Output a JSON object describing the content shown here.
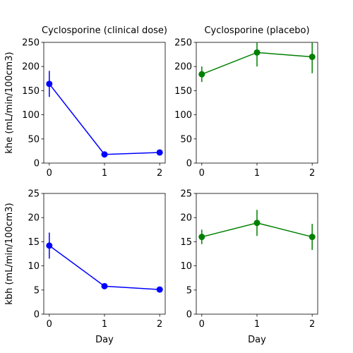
{
  "chart_data": [
    {
      "type": "line",
      "title": "Cyclosporine (clinical dose)",
      "xlabel": "",
      "ylabel": "khe (mL/min/100cm3)",
      "xlim": [
        -0.1,
        2.1
      ],
      "ylim": [
        0,
        250
      ],
      "xticks": [
        0,
        1,
        2
      ],
      "yticks": [
        0,
        50,
        100,
        150,
        200,
        250
      ],
      "color": "#0000ff",
      "grid": false,
      "x": [
        0,
        1,
        2
      ],
      "y": [
        164,
        18,
        22
      ],
      "err": [
        27,
        3,
        3
      ]
    },
    {
      "type": "line",
      "title": "Cyclosporine (placebo)",
      "xlabel": "",
      "ylabel": "",
      "xlim": [
        -0.1,
        2.1
      ],
      "ylim": [
        0,
        250
      ],
      "xticks": [
        0,
        1,
        2
      ],
      "yticks": [
        0,
        50,
        100,
        150,
        200,
        250
      ],
      "color": "#008000",
      "grid": false,
      "x": [
        0,
        1,
        2
      ],
      "y": [
        184,
        229,
        220
      ],
      "err": [
        16,
        29,
        34
      ]
    },
    {
      "type": "line",
      "title": "",
      "xlabel": "Day",
      "ylabel": "kbh (mL/min/100cm3)",
      "xlim": [
        -0.1,
        2.1
      ],
      "ylim": [
        0,
        25
      ],
      "xticks": [
        0,
        1,
        2
      ],
      "yticks": [
        0,
        5,
        10,
        15,
        20,
        25
      ],
      "color": "#0000ff",
      "grid": false,
      "x": [
        0,
        1,
        2
      ],
      "y": [
        14.2,
        5.8,
        5.1
      ],
      "err": [
        2.7,
        0.4,
        0.4
      ]
    },
    {
      "type": "line",
      "title": "",
      "xlabel": "Day",
      "ylabel": "",
      "xlim": [
        -0.1,
        2.1
      ],
      "ylim": [
        0,
        25
      ],
      "xticks": [
        0,
        1,
        2
      ],
      "yticks": [
        0,
        5,
        10,
        15,
        20,
        25
      ],
      "color": "#008000",
      "grid": false,
      "x": [
        0,
        1,
        2
      ],
      "y": [
        16.0,
        18.9,
        16.0
      ],
      "err": [
        1.5,
        2.7,
        2.7
      ]
    }
  ]
}
